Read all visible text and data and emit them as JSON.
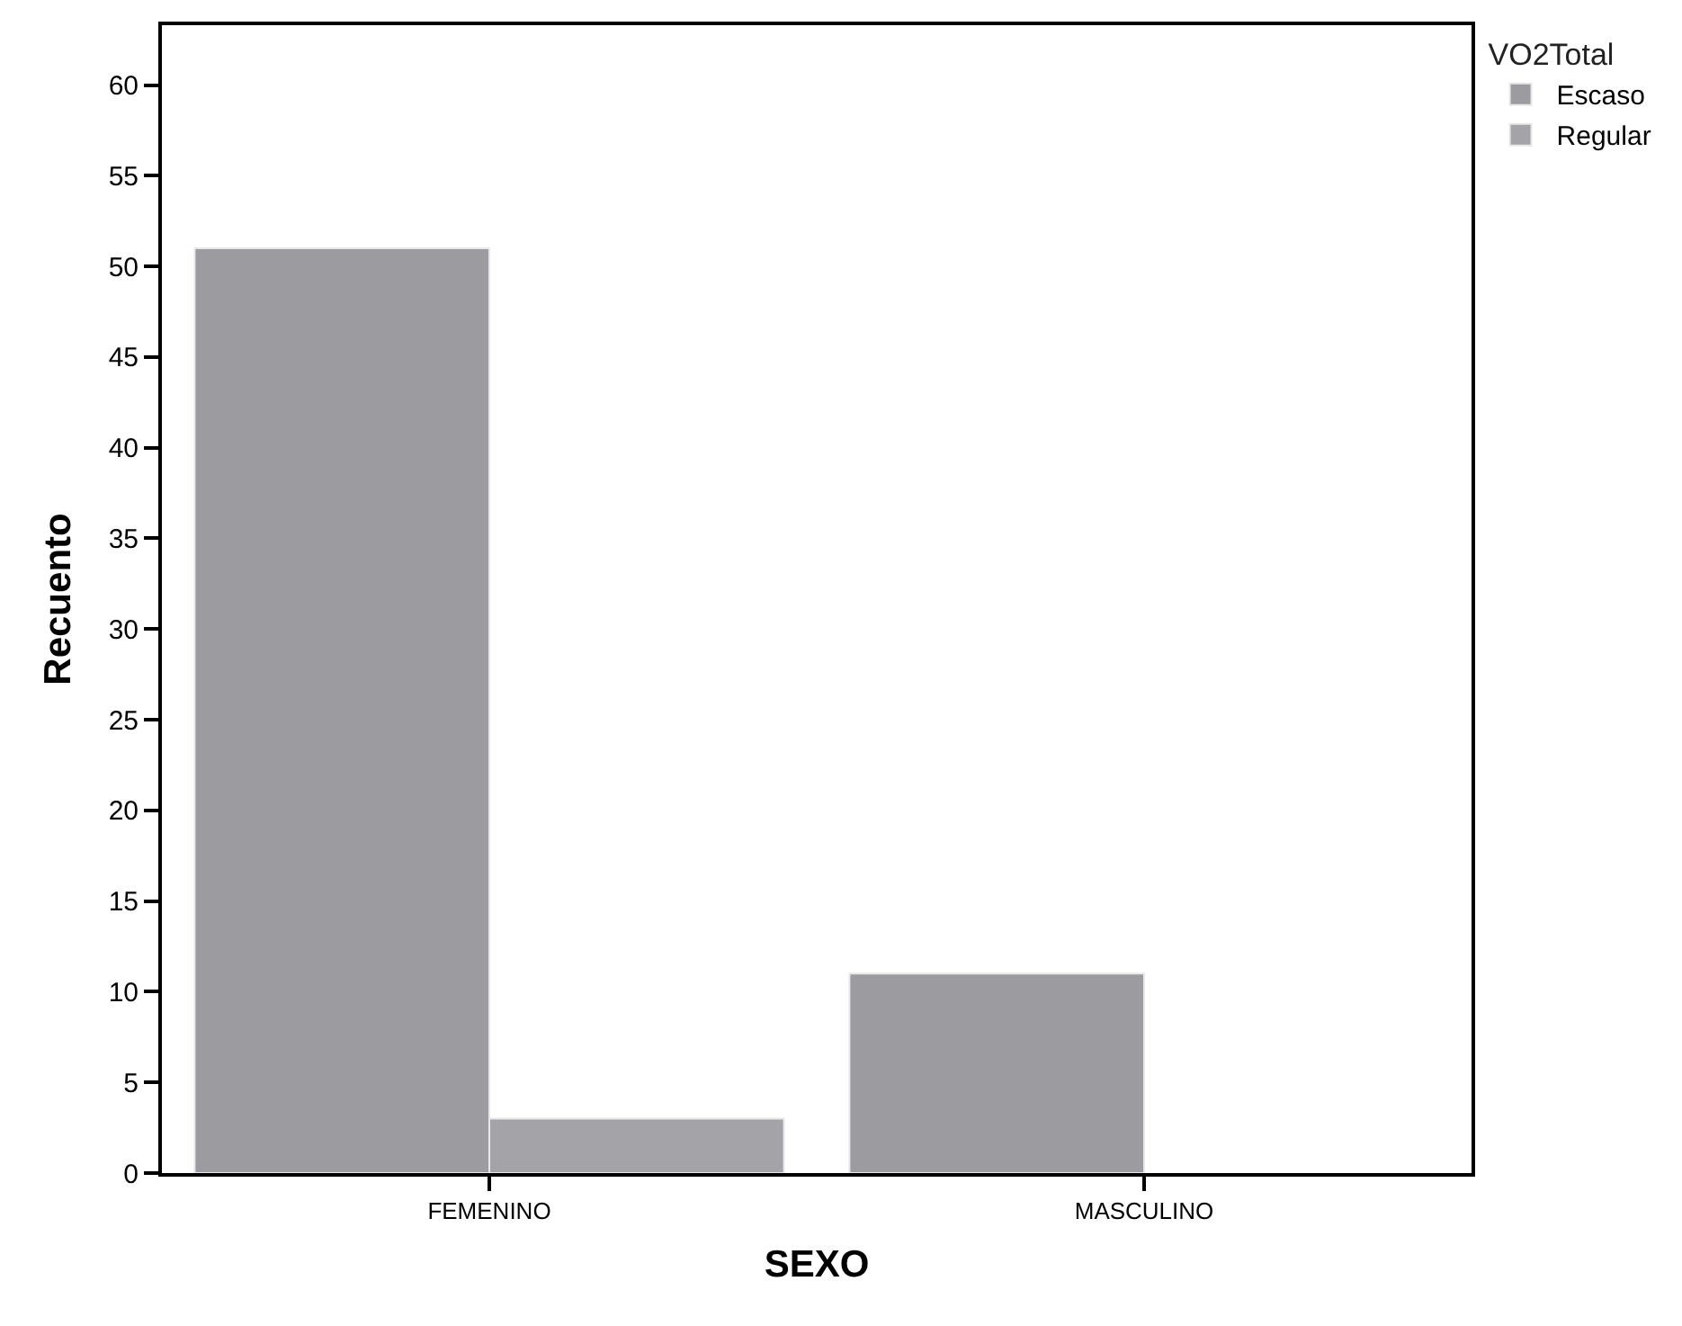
{
  "chart_data": {
    "type": "bar",
    "xlabel": "SEXO",
    "ylabel": "Recuento",
    "legend_title": "VO2Total",
    "categories": [
      "FEMENINO",
      "MASCULINO"
    ],
    "series": [
      {
        "name": "Escaso",
        "color": "#9c9ca0",
        "values": [
          51,
          11
        ]
      },
      {
        "name": "Regular",
        "color": "#a4a4a8",
        "values": [
          3,
          null
        ]
      }
    ],
    "ylim": [
      0,
      63.3
    ],
    "yticks": [
      0,
      5,
      10,
      15,
      20,
      25,
      30,
      35,
      40,
      45,
      50,
      55,
      60
    ],
    "legend": "top right"
  }
}
